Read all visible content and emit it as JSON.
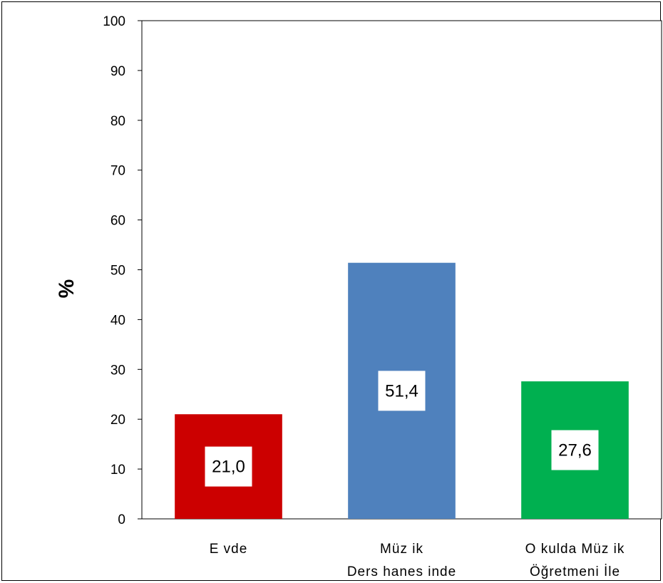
{
  "chart_data": {
    "type": "bar",
    "categories": [
      [
        "E vde"
      ],
      [
        "Müz ik",
        "Ders hanes inde"
      ],
      [
        "O kulda  Müz ik",
        "Öğretmeni  İle"
      ]
    ],
    "values": [
      21.0,
      51.4,
      27.6
    ],
    "value_labels": [
      "21,0",
      "51,4",
      "27,6"
    ],
    "bar_colors": [
      "#cc0000",
      "#4f81bd",
      "#00b050"
    ],
    "ylabel": "%",
    "ylim": [
      0,
      100
    ],
    "yticks": [
      0,
      10,
      20,
      30,
      40,
      50,
      60,
      70,
      80,
      90,
      100
    ],
    "grid": false,
    "legend": "none"
  }
}
